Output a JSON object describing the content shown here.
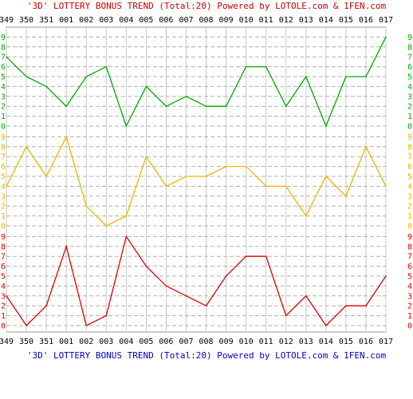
{
  "header": {
    "title_top": "'3D' LOTTERY BONUS TREND (Total:20)  Powered by LOTOLE.com & 1FEN.com",
    "title_bottom": "'3D' LOTTERY BONUS TREND (Total:20)  Powered by LOTOLE.com & 1FEN.com",
    "title_top_color": "#cc0000",
    "title_bottom_color": "#0000cc"
  },
  "chart_data": {
    "type": "line",
    "title": "'3D' LOTTERY BONUS TREND (Total:20)  Powered by LOTOLE.com & 1FEN.com",
    "categories": [
      "349",
      "350",
      "351",
      "001",
      "002",
      "003",
      "004",
      "005",
      "006",
      "007",
      "008",
      "009",
      "010",
      "011",
      "012",
      "013",
      "014",
      "015",
      "016",
      "017"
    ],
    "grid": true,
    "panels": [
      {
        "color": "#00aa00",
        "tick_labels": [
          "0",
          "1",
          "2",
          "3",
          "4",
          "5",
          "6",
          "7",
          "8",
          "9"
        ],
        "ylim": [
          0,
          9
        ],
        "values": [
          7,
          5,
          4,
          2,
          5,
          6,
          0,
          4,
          2,
          3,
          2,
          2,
          6,
          6,
          2,
          5,
          0,
          5,
          5,
          9
        ]
      },
      {
        "color": "#f0b400",
        "tick_labels": [
          "0",
          "1",
          "2",
          "3",
          "4",
          "5",
          "6",
          "7",
          "8",
          "9"
        ],
        "ylim": [
          0,
          9
        ],
        "values": [
          4,
          8,
          5,
          9,
          2,
          0,
          1,
          7,
          4,
          5,
          5,
          6,
          6,
          4,
          4,
          1,
          5,
          3,
          8,
          4
        ]
      },
      {
        "color": "#dd0000",
        "tick_labels": [
          "0",
          "1",
          "2",
          "3",
          "4",
          "5",
          "6",
          "7",
          "8",
          "9"
        ],
        "ylim": [
          0,
          9
        ],
        "values": [
          3,
          0,
          2,
          8,
          0,
          1,
          9,
          6,
          4,
          3,
          2,
          5,
          7,
          7,
          1,
          3,
          0,
          2,
          2,
          5
        ]
      }
    ]
  }
}
